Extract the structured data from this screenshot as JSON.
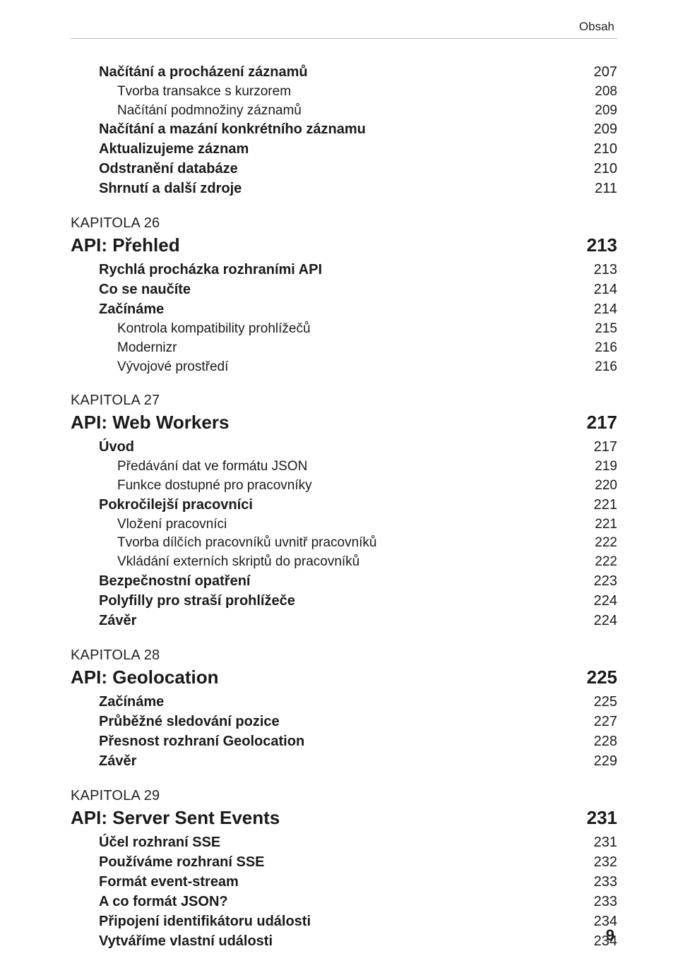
{
  "header": {
    "running_head": "Obsah"
  },
  "footer": {
    "page_number": "9"
  },
  "styles": {
    "font_family": "Myriad Pro / sans-serif",
    "body_fontsize_pt": 14,
    "chapter_fontsize_pt": 19,
    "kapitola_fontsize_pt": 15,
    "text_color": "#1a1a1a",
    "rule_color": "#bdbdbd",
    "background_color": "#ffffff"
  },
  "entries": [
    {
      "type": "row",
      "level": 0,
      "label": "Načítání a procházení záznamů",
      "page": "207"
    },
    {
      "type": "row",
      "level": 1,
      "label": "Tvorba transakce s kurzorem",
      "page": "208"
    },
    {
      "type": "row",
      "level": 1,
      "label": "Načítání podmnožiny záznamů",
      "page": "209"
    },
    {
      "type": "row",
      "level": 0,
      "label": "Načítání a mazání konkrétního záznamu",
      "page": "209"
    },
    {
      "type": "row",
      "level": 0,
      "label": "Aktualizujeme záznam",
      "page": "210"
    },
    {
      "type": "row",
      "level": 0,
      "label": "Odstranění databáze",
      "page": "210"
    },
    {
      "type": "row",
      "level": 0,
      "label": "Shrnutí a další zdroje",
      "page": "211"
    },
    {
      "type": "kapitola",
      "label": "KAPITOLA 26"
    },
    {
      "type": "chapter",
      "label": "API: Přehled",
      "page": "213"
    },
    {
      "type": "row",
      "level": 0,
      "label": "Rychlá procházka rozhraními API",
      "page": "213"
    },
    {
      "type": "row",
      "level": 0,
      "label": "Co se naučíte",
      "page": "214"
    },
    {
      "type": "row",
      "level": 0,
      "label": "Začínáme",
      "page": "214"
    },
    {
      "type": "row",
      "level": 1,
      "label": "Kontrola kompatibility prohlížečů",
      "page": "215"
    },
    {
      "type": "row",
      "level": 1,
      "label": "Modernizr",
      "page": "216"
    },
    {
      "type": "row",
      "level": 1,
      "label": "Vývojové prostředí",
      "page": "216"
    },
    {
      "type": "kapitola",
      "label": "KAPITOLA 27"
    },
    {
      "type": "chapter",
      "label": "API: Web Workers",
      "page": "217"
    },
    {
      "type": "row",
      "level": 0,
      "label": "Úvod",
      "page": "217"
    },
    {
      "type": "row",
      "level": 1,
      "label": "Předávání dat ve formátu JSON",
      "page": "219"
    },
    {
      "type": "row",
      "level": 1,
      "label": "Funkce dostupné pro pracovníky",
      "page": "220"
    },
    {
      "type": "row",
      "level": 0,
      "label": "Pokročilejší pracovníci",
      "page": "221"
    },
    {
      "type": "row",
      "level": 1,
      "label": "Vložení pracovníci",
      "page": "221"
    },
    {
      "type": "row",
      "level": 1,
      "label": "Tvorba dílčích pracovníků uvnitř pracovníků",
      "page": "222"
    },
    {
      "type": "row",
      "level": 1,
      "label": "Vkládání externích skriptů do pracovníků",
      "page": "222"
    },
    {
      "type": "row",
      "level": 0,
      "label": "Bezpečnostní opatření",
      "page": "223"
    },
    {
      "type": "row",
      "level": 0,
      "label": "Polyfilly pro straší prohlížeče",
      "page": "224"
    },
    {
      "type": "row",
      "level": 0,
      "label": "Závěr",
      "page": "224"
    },
    {
      "type": "kapitola",
      "label": "KAPITOLA 28"
    },
    {
      "type": "chapter",
      "label": "API: Geolocation",
      "page": "225"
    },
    {
      "type": "row",
      "level": 0,
      "label": "Začínáme",
      "page": "225"
    },
    {
      "type": "row",
      "level": 0,
      "label": "Průběžné sledování pozice",
      "page": "227"
    },
    {
      "type": "row",
      "level": 0,
      "label": "Přesnost rozhraní Geolocation",
      "page": "228"
    },
    {
      "type": "row",
      "level": 0,
      "label": "Závěr",
      "page": "229"
    },
    {
      "type": "kapitola",
      "label": "KAPITOLA 29"
    },
    {
      "type": "chapter",
      "label": "API: Server Sent Events",
      "page": "231"
    },
    {
      "type": "row",
      "level": 0,
      "label": "Účel rozhraní SSE",
      "page": "231"
    },
    {
      "type": "row",
      "level": 0,
      "label": "Používáme rozhraní SSE",
      "page": "232"
    },
    {
      "type": "row",
      "level": 0,
      "label": "Formát event-stream",
      "page": "233"
    },
    {
      "type": "row",
      "level": 0,
      "label": "A co formát JSON?",
      "page": "233"
    },
    {
      "type": "row",
      "level": 0,
      "label": "Připojení identifikátoru události",
      "page": "234"
    },
    {
      "type": "row",
      "level": 0,
      "label": "Vytváříme vlastní události",
      "page": "234"
    }
  ]
}
